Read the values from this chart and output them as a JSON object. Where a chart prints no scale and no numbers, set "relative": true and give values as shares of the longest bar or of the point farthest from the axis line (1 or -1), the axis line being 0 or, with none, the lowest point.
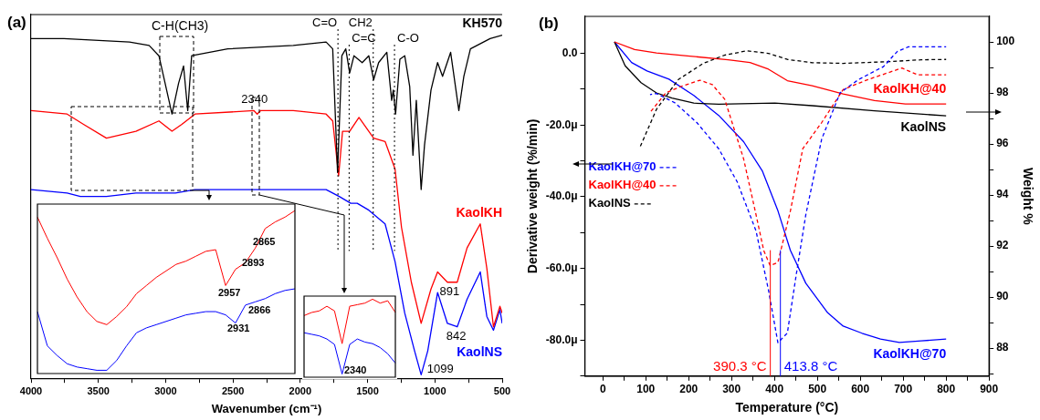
{
  "chart_data": [
    {
      "type": "line",
      "xlabel": "Wavenumber (cm⁻¹)",
      "relative": true,
      "tick_labels": "x",
      "grid": false,
      "legend": false,
      "xlim": [
        4000,
        500
      ],
      "xticks": [
        4000,
        {
          "value": 3750,
          "label": null
        },
        3500,
        {
          "value": 3250,
          "label": null
        },
        3000,
        {
          "value": 2750,
          "label": null
        },
        2500,
        {
          "value": 2250,
          "label": null
        },
        2000,
        {
          "value": 1750,
          "label": null
        },
        1500,
        {
          "value": 1250,
          "label": null
        },
        1000,
        {
          "value": 750,
          "label": null
        },
        500
      ],
      "series": [
        {
          "name": "KH570",
          "color": "#000000",
          "x": [
            4000,
            3756,
            3269,
            3123,
            3050,
            2953,
            2904,
            2867,
            2836,
            2807,
            2539,
            2052,
            1808,
            1759,
            1723,
            1691,
            1662,
            1633,
            1601,
            1540,
            1491,
            1455,
            1418,
            1357,
            1321,
            1309,
            1292,
            1260,
            1224,
            1187,
            1163,
            1138,
            1102,
            1077,
            1029,
            980,
            943,
            883,
            822,
            785,
            736,
            590,
            500
          ],
          "values": [
            0.99,
            0.99,
            0.98,
            0.97,
            0.94,
            0.77,
            0.86,
            0.91,
            0.78,
            0.94,
            0.96,
            0.97,
            0.98,
            0.96,
            0.6,
            0.94,
            0.96,
            0.89,
            0.94,
            0.92,
            0.94,
            0.87,
            0.92,
            0.95,
            0.81,
            0.84,
            0.77,
            0.93,
            0.94,
            0.85,
            0.65,
            0.81,
            0.55,
            0.68,
            0.84,
            0.92,
            0.88,
            0.95,
            0.78,
            0.88,
            0.96,
            0.99,
            1.0
          ]
        },
        {
          "name": "KaolKH",
          "color": "#ff0000",
          "x": [
            4000,
            3732,
            3610,
            3440,
            3221,
            3050,
            2953,
            2880,
            2782,
            2344,
            2320,
            2295,
            2052,
            1808,
            1759,
            1715,
            1686,
            1633,
            1564,
            1491,
            1455,
            1370,
            1296,
            1248,
            1175,
            1102,
            1029,
            980,
            907,
            834,
            761,
            663,
            614,
            565,
            517,
            500
          ],
          "values": [
            0.78,
            0.77,
            0.74,
            0.7,
            0.72,
            0.75,
            0.72,
            0.74,
            0.77,
            0.78,
            0.77,
            0.78,
            0.78,
            0.77,
            0.75,
            0.59,
            0.72,
            0.72,
            0.76,
            0.72,
            0.7,
            0.69,
            0.61,
            0.44,
            0.28,
            0.16,
            0.26,
            0.31,
            0.28,
            0.28,
            0.38,
            0.45,
            0.32,
            0.15,
            0.21,
            0.19
          ]
        },
        {
          "name": "KaolNS",
          "color": "#0000ff",
          "x": [
            4000,
            3732,
            3634,
            3440,
            3221,
            2928,
            2782,
            2344,
            2052,
            1808,
            1711,
            1625,
            1577,
            1491,
            1370,
            1296,
            1224,
            1151,
            1102,
            1053,
            980,
            907,
            834,
            761,
            663,
            614,
            565,
            517,
            500
          ],
          "values": [
            0.55,
            0.54,
            0.53,
            0.53,
            0.54,
            0.54,
            0.55,
            0.55,
            0.55,
            0.55,
            0.53,
            0.51,
            0.51,
            0.49,
            0.45,
            0.34,
            0.19,
            0.08,
            0.01,
            0.08,
            0.25,
            0.16,
            0.15,
            0.23,
            0.31,
            0.18,
            0.14,
            0.2,
            0.16
          ]
        }
      ],
      "ref_lines": [
        {
          "axis": "x",
          "value": 1720,
          "label": "C=O",
          "color": "#000000",
          "line_style": "dotted"
        },
        {
          "axis": "x",
          "value": 1637,
          "label": "C=C",
          "color": "#000000",
          "line_style": "dotted"
        },
        {
          "axis": "x",
          "value": 1458,
          "label": "CH2",
          "color": "#000000",
          "line_style": "dotted"
        },
        {
          "axis": "x",
          "value": 1300,
          "label": "C-O",
          "color": "#000000",
          "line_style": "dotted"
        }
      ],
      "annotations": [
        "(a)",
        "C-H(CH3)",
        {
          "text": "2340",
          "x": 2340,
          "y": 0.78
        },
        {
          "text": "891",
          "x": 891,
          "y": 0.28
        },
        {
          "text": "842",
          "x": 842,
          "y": 0.15
        },
        {
          "text": "1099",
          "x": 1099,
          "y": 0.01
        }
      ]
    },
    {
      "type": "line",
      "relative": true,
      "tick_labels": false,
      "legend": false,
      "categories": [
        null,
        null,
        null,
        null,
        null,
        null,
        null,
        null,
        null,
        null,
        null,
        null,
        null,
        null,
        null,
        null,
        null,
        null,
        null,
        null,
        null,
        null,
        null,
        null,
        null,
        null,
        null
      ],
      "series": [
        {
          "color": "#ff0000",
          "values": [
            0.96,
            0.83,
            0.71,
            0.58,
            0.47,
            0.38,
            0.32,
            0.3,
            0.35,
            0.41,
            0.49,
            0.54,
            0.59,
            0.63,
            0.67,
            0.69,
            0.72,
            0.75,
            0.76,
            0.54,
            0.64,
            0.68,
            0.77,
            0.89,
            0.93,
            0.96,
            1.0
          ]
        },
        {
          "color": "#0000ff",
          "values": [
            0.38,
            0.17,
            0.11,
            0.06,
            0.04,
            0.03,
            0.02,
            0.02,
            0.08,
            0.17,
            0.25,
            0.28,
            0.3,
            0.32,
            0.34,
            0.36,
            0.37,
            0.38,
            0.38,
            0.36,
            0.31,
            0.42,
            0.44,
            0.46,
            0.49,
            0.51,
            0.52
          ]
        }
      ],
      "annotations": [
        "2865",
        "2893",
        "2957",
        "2931",
        "2866"
      ]
    },
    {
      "type": "line",
      "relative": true,
      "tick_labels": false,
      "legend": false,
      "categories": [
        null,
        null,
        null,
        null,
        null,
        null,
        null,
        null,
        null,
        null,
        null,
        null,
        null
      ],
      "series": [
        {
          "color": "#ff0000",
          "values": [
            0.79,
            0.83,
            0.85,
            0.91,
            0.85,
            0.43,
            0.91,
            0.93,
            0.95,
            1.0,
            0.95,
            0.98,
            0.83
          ]
        },
        {
          "color": "#0000ff",
          "values": [
            0.57,
            0.55,
            0.53,
            0.49,
            0.42,
            0.04,
            0.42,
            0.49,
            0.45,
            0.43,
            0.38,
            0.3,
            0.18
          ]
        }
      ],
      "annotations": [
        "2340"
      ]
    },
    {
      "type": "line",
      "xlabel": "Temperature (°C)",
      "ylabel": "Derivative weight (%/min)",
      "y2label": "Weight %",
      "grid": false,
      "legend": "left",
      "xlim": [
        -42,
        900
      ],
      "xticks": [
        0,
        {
          "value": 50,
          "label": null
        },
        100,
        {
          "value": 150,
          "label": null
        },
        200,
        {
          "value": 250,
          "label": null
        },
        300,
        {
          "value": 350,
          "label": null
        },
        400,
        {
          "value": 450,
          "label": null
        },
        500,
        {
          "value": 550,
          "label": null
        },
        600,
        {
          "value": 650,
          "label": null
        },
        700,
        {
          "value": 750,
          "label": null
        },
        800,
        {
          "value": 850,
          "label": null
        },
        900
      ],
      "ylim": [
        -90,
        10.3
      ],
      "yticks": [
        {
          "value": 0,
          "label": "0.0"
        },
        {
          "value": -10,
          "label": null
        },
        {
          "value": -20,
          "label": "-20.0μ"
        },
        {
          "value": -30,
          "label": null
        },
        {
          "value": -40,
          "label": "-40.0μ"
        },
        {
          "value": -50,
          "label": null
        },
        {
          "value": -60,
          "label": "-60.0μ"
        },
        {
          "value": -70,
          "label": null
        },
        {
          "value": -80,
          "label": "-80.0μ"
        },
        {
          "value": -90,
          "label": null
        }
      ],
      "y2lim": [
        86.9,
        101
      ],
      "y2ticks": [
        {
          "value": 87,
          "label": null
        },
        88,
        {
          "value": 89,
          "label": null
        },
        90,
        {
          "value": 91,
          "label": null
        },
        92,
        {
          "value": 93,
          "label": null
        },
        94,
        {
          "value": 95,
          "label": null
        },
        96,
        {
          "value": 97,
          "label": null
        },
        98,
        {
          "value": 99,
          "label": null
        },
        100
      ],
      "series": [
        {
          "name": "KaolKH@70",
          "color": "#0000ff",
          "line_style": "dashed",
          "x": [
            110,
            125,
            168,
            219,
            270,
            313,
            357,
            386,
            408,
            430,
            451,
            473,
            510,
            553,
            596,
            654,
            686,
            712,
            800
          ],
          "values": [
            -11.5,
            -11.2,
            -13.8,
            -19.3,
            -26.6,
            -35.8,
            -49.5,
            -66,
            -80.7,
            -78,
            -61.5,
            -45,
            -23.9,
            -11,
            -7.3,
            -3.7,
            0.5,
            1.8,
            1.8
          ]
        },
        {
          "name": "KaolKH@40",
          "color": "#ff0000",
          "line_style": "dashed",
          "x": [
            110,
            147,
            183,
            226,
            255,
            284,
            328,
            357,
            375,
            390,
            408,
            437,
            466,
            510,
            560,
            618,
            697,
            734,
            800
          ],
          "values": [
            -16.5,
            -11,
            -9.2,
            -7.5,
            -8.7,
            -12.8,
            -29.4,
            -45,
            -55,
            -59.2,
            -58.3,
            -44,
            -26.6,
            -19.3,
            -10.1,
            -7.3,
            -4.1,
            -6,
            -6
          ]
        },
        {
          "name": "KaolNS",
          "color": "#000000",
          "line_style": "dashed",
          "x": [
            85,
            125,
            176,
            234,
            284,
            335,
            386,
            430,
            488,
            560,
            669,
            742,
            800
          ],
          "values": [
            -26.6,
            -15.6,
            -7.3,
            -2.8,
            -0.5,
            0.7,
            0,
            -1.7,
            -2.6,
            -2.8,
            -2.3,
            -1.8,
            -1.7
          ]
        },
        {
          "name": "KaolKH@40",
          "color": "#ff0000",
          "axis": "y2",
          "x": [
            27,
            74,
            125,
            197,
            292,
            343,
            386,
            430,
            488,
            560,
            633,
            705,
            800
          ],
          "values": [
            100,
            99.7,
            99.57,
            99.45,
            99.3,
            99.19,
            98.93,
            98.48,
            98.28,
            97.96,
            97.7,
            97.57,
            97.57
          ]
        },
        {
          "name": "KaolNS",
          "color": "#000000",
          "axis": "y2",
          "x": [
            27,
            52,
            89,
            125,
            161,
            212,
            270,
            401,
            488,
            633,
            800
          ],
          "values": [
            100,
            99.06,
            98.4,
            98.0,
            97.8,
            97.6,
            97.56,
            97.6,
            97.5,
            97.3,
            97.1
          ]
        },
        {
          "name": "KaolKH@70",
          "color": "#0000ff",
          "axis": "y2",
          "x": [
            27,
            67,
            103,
            154,
            212,
            270,
            328,
            372,
            408,
            437,
            473,
            524,
            560,
            604,
            647,
            691,
            742,
            800
          ],
          "values": [
            100,
            99.19,
            98.86,
            98.54,
            97.9,
            97.12,
            96.09,
            94.93,
            93.38,
            91.83,
            90.54,
            89.38,
            88.86,
            88.58,
            88.35,
            88.22,
            88.28,
            88.35
          ]
        }
      ],
      "ref_lines": [
        {
          "axis": "x",
          "value": 390.3,
          "label": "390.3 °C",
          "color": "#ff0000"
        },
        {
          "axis": "x",
          "value": 413.8,
          "label": "413.8 °C",
          "color": "#0000ff"
        }
      ],
      "annotations": [
        "(b)"
      ]
    }
  ]
}
